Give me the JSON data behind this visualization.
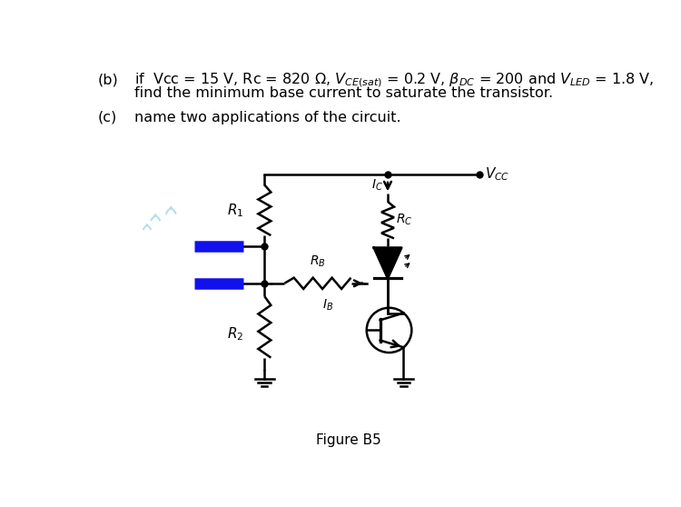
{
  "bg_color": "#ffffff",
  "circuit_color": "#000000",
  "blue_color": "#1111ee",
  "drop_color": "#aaddee",
  "title": "Figure B5",
  "label_VCC": "$V_{CC}$",
  "label_IC": "$I_C$",
  "label_RC": "$R_C$",
  "label_R1": "$R_1$",
  "label_R2": "$R_2$",
  "label_RB": "$R_B$",
  "label_IB": "$I_B$",
  "line_b_label": "(b)",
  "line_b_main": "if  Vcc = 15 V, Rc = 820 $\\Omega$, $V_{CE(sat)}$ = 0.2 V, $\\beta_{DC}$ = 200 and $V_{LED}$ = 1.8 V,",
  "line_b2": "find the minimum base current to saturate the transistor.",
  "line_c_label": "(c)",
  "line_c_main": "name two applications of the circuit.",
  "fig_label": "Figure B5"
}
